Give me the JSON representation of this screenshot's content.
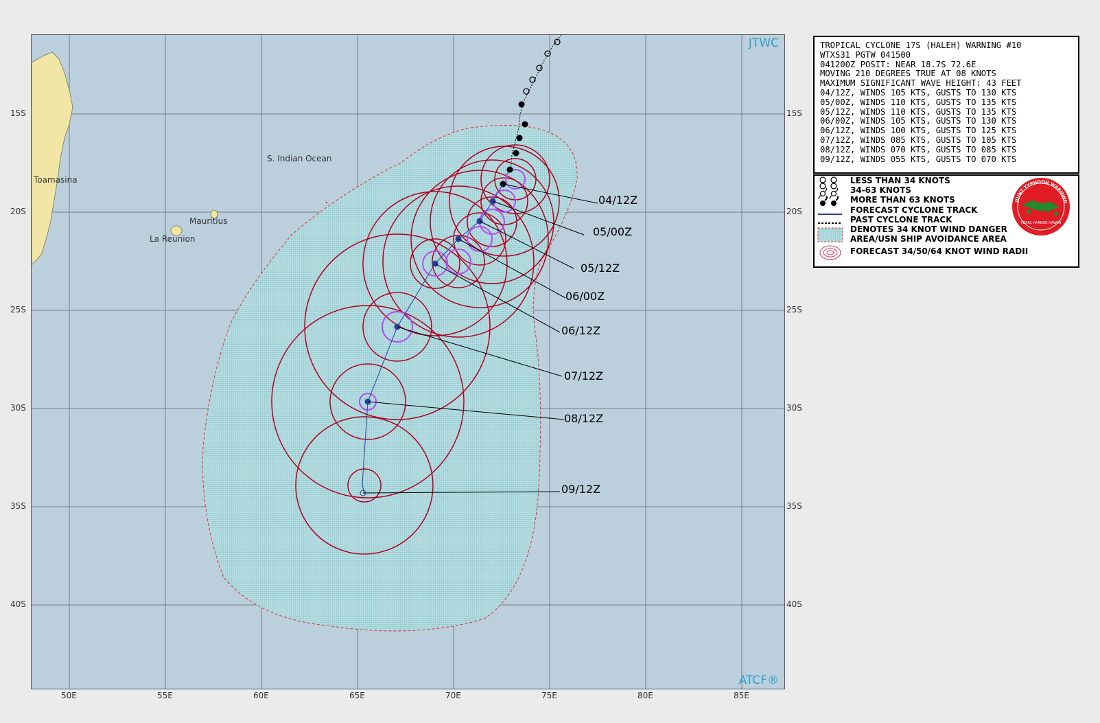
{
  "map": {
    "brand_top": "JTWC",
    "brand_bottom": "ATCF®",
    "lat_labels": [
      "15S",
      "20S",
      "25S",
      "30S",
      "35S",
      "40S"
    ],
    "lon_labels": [
      "50E",
      "55E",
      "60E",
      "65E",
      "70E",
      "75E",
      "80E",
      "85E"
    ],
    "place_labels": {
      "ocean": "S. Indian Ocean",
      "toamasina": "Toamasina",
      "mauritius": "Mauritius",
      "reunion": "La Reunion"
    },
    "forecast_tags": [
      "04/12Z",
      "05/00Z",
      "05/12Z",
      "06/00Z",
      "06/12Z",
      "07/12Z",
      "08/12Z",
      "09/12Z"
    ],
    "colors": {
      "ocean": "#bccfdd",
      "land": "#f2e6a6",
      "danger_area": "#9fd0d5",
      "wind_radii": "#b00020",
      "inner_radii": "#b44cf0",
      "track": "#2a3c9c",
      "danger_outline": "#e03030"
    }
  },
  "warning": {
    "lines": [
      "TROPICAL CYCLONE 17S (HALEH) WARNING #10",
      "WTXS31 PGTW 041500",
      "041200Z POSIT: NEAR 18.7S 72.6E",
      "MOVING 210 DEGREES TRUE AT 08 KNOTS",
      "MAXIMUM SIGNIFICANT WAVE HEIGHT: 43 FEET",
      "04/12Z, WINDS 105 KTS, GUSTS TO 130 KTS",
      "05/00Z, WINDS 110 KTS, GUSTS TO 135 KTS",
      "05/12Z, WINDS 110 KTS, GUSTS TO 135 KTS",
      "06/00Z, WINDS 105 KTS, GUSTS TO 130 KTS",
      "06/12Z, WINDS 100 KTS, GUSTS TO 125 KTS",
      "07/12Z, WINDS 085 KTS, GUSTS TO 105 KTS",
      "08/12Z, WINDS 070 KTS, GUSTS TO 085 KTS",
      "09/12Z, WINDS 055 KTS, GUSTS TO 070 KTS"
    ]
  },
  "legend": {
    "items": [
      "LESS THAN 34 KNOTS",
      "34-63 KNOTS",
      "MORE THAN 63 KNOTS",
      "FORECAST CYCLONE TRACK",
      "PAST CYCLONE TRACK",
      "DENOTES 34 KNOT WIND DANGER",
      "AREA/USN SHIP AVOIDANCE AREA",
      "FORECAST 34/50/64 KNOT WIND RADII"
    ],
    "seal_text": "JOINT TYPHOON WARNING CENTER",
    "seal_sub": "PEARL HARBOR HAWAII"
  }
}
